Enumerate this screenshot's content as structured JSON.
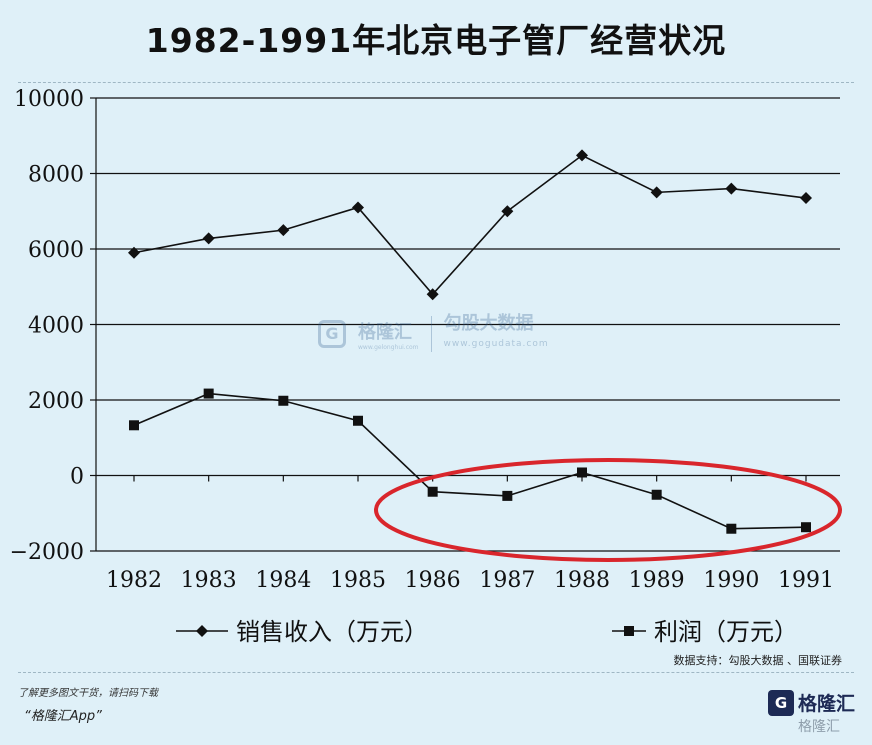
{
  "title": "1982-1991年北京电子管厂经营状况",
  "source": "数据支持：勾股大数据 、国联证券",
  "footer": {
    "promo": "了解更多图文干货，请扫码下载",
    "app": "“格隆汇App”",
    "brand_name": "格隆汇",
    "brand_logo_char": "G"
  },
  "watermark": {
    "logo_char": "G",
    "name": "格隆汇",
    "url_left": "www.gelonghui.com",
    "right_name": "勾股大数据",
    "right_url": "www.gogudata.com"
  },
  "corner_watermark": "格隆汇",
  "chart_data": {
    "type": "line",
    "categories": [
      "1982",
      "1983",
      "1984",
      "1985",
      "1986",
      "1987",
      "1988",
      "1989",
      "1990",
      "1991"
    ],
    "y_ticks": [
      "10000",
      "8000",
      "6000",
      "4000",
      "2000",
      "0",
      "−2000"
    ],
    "ylim": [
      -2000,
      10000
    ],
    "grid": true,
    "legend_position": "bottom",
    "series": [
      {
        "name": "销售收入（万元）",
        "marker": "diamond",
        "values": [
          5900,
          6280,
          6500,
          7100,
          4800,
          7000,
          8480,
          7500,
          7600,
          7350
        ]
      },
      {
        "name": "利润（万元）",
        "marker": "square",
        "values": [
          1330,
          2170,
          1980,
          1450,
          -430,
          -540,
          80,
          -510,
          -1410,
          -1370
        ]
      }
    ],
    "annotation": {
      "type": "ellipse",
      "color": "#d9262c",
      "covers": [
        "1986",
        "1991"
      ]
    }
  }
}
